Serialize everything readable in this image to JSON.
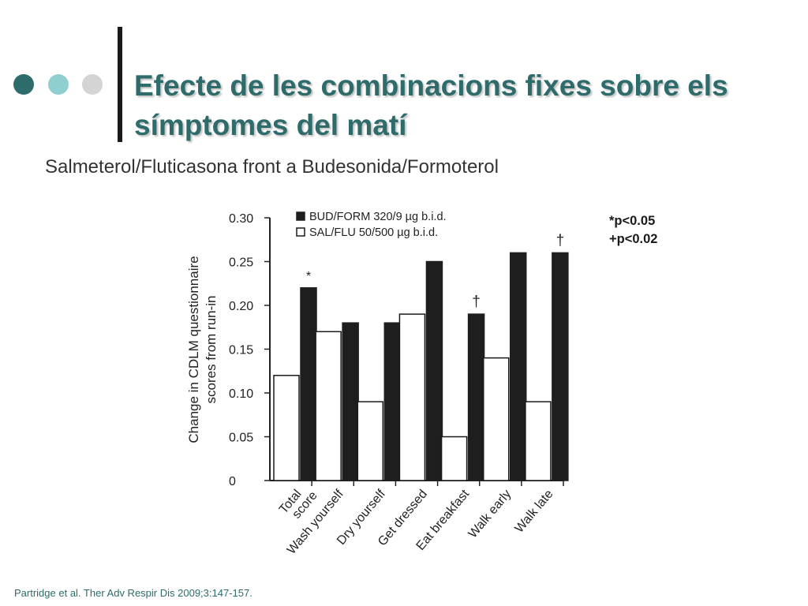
{
  "slide": {
    "title": "Efecte de les combinacions fixes sobre els símptomes del matí",
    "subtitle": "Salmeterol/Fluticasona front a Budesonida/Formoterol",
    "significance_notes": [
      "*p<0.05",
      "+p<0.02"
    ],
    "citation": "Partridge et al. Ther Adv Respir Dis 2009;3:147-157.",
    "colors": {
      "title": "#2e6b6b",
      "dot_dark": "#2e6b6b",
      "dot_light": "#8fcfcf",
      "dot_grey": "#d4d4d4",
      "citation": "#2e6b6b"
    }
  },
  "chart_data": {
    "type": "bar",
    "categories": [
      "Total\nscore",
      "Wash yourself",
      "Dry yourself",
      "Get dressed",
      "Eat breakfast",
      "Walk early",
      "Walk late"
    ],
    "series": [
      {
        "name": "SAL/FLU 50/500 µg b.i.d.",
        "values": [
          0.12,
          0.17,
          0.09,
          0.19,
          0.05,
          0.14,
          0.09
        ],
        "fill": "#ffffff",
        "stroke": "#1a1a1a"
      },
      {
        "name": "BUD/FORM 320/9 µg b.i.d.",
        "values": [
          0.22,
          0.18,
          0.18,
          0.25,
          0.19,
          0.26,
          0.26
        ],
        "fill": "#1e1e1e",
        "stroke": "#1e1e1e"
      }
    ],
    "ylabel": "Change in CDLM questionnaire\nscores from run-in",
    "xlabel": "",
    "ylim": [
      0,
      0.3
    ],
    "yticks": [
      "0",
      "0.05",
      "0.10",
      "0.15",
      "0.20",
      "0.25",
      "0.30"
    ],
    "annotations": [
      {
        "category": "Total\nscore",
        "series": "BUD/FORM 320/9 µg b.i.d.",
        "text": "*"
      },
      {
        "category": "Eat breakfast",
        "series": "BUD/FORM 320/9 µg b.i.d.",
        "text": "†"
      },
      {
        "category": "Walk late",
        "series": "BUD/FORM 320/9 µg b.i.d.",
        "text": "†"
      }
    ],
    "legend_position": "top-left",
    "grid": false
  }
}
